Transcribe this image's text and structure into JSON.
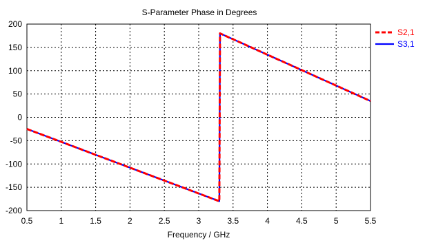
{
  "chart_data": {
    "type": "line",
    "title": "S-Parameter Phase in Degrees",
    "xlabel": "Frequency / GHz",
    "ylabel": "",
    "xlim": [
      0.5,
      5.5
    ],
    "ylim": [
      -200,
      200
    ],
    "xticks": [
      0.5,
      1,
      1.5,
      2,
      2.5,
      3,
      3.5,
      4,
      4.5,
      5,
      5.5
    ],
    "xtick_labels": [
      "0.5",
      "1",
      "1.5",
      "2",
      "2.5",
      "3",
      "3.5",
      "4",
      "4.5",
      "5",
      "5.5"
    ],
    "yticks": [
      200,
      150,
      100,
      50,
      0,
      -50,
      -100,
      -150,
      -200
    ],
    "ytick_labels": [
      "200",
      "150",
      "100",
      "50",
      "0",
      "-50",
      "-100",
      "-150",
      "-200"
    ],
    "grid": true,
    "legend_position": "right",
    "series": [
      {
        "name": "S2,1",
        "color": "#ff0000",
        "style": "dashed",
        "x": [
          0.5,
          3.3,
          3.31,
          5.5
        ],
        "y": [
          -25,
          -180,
          180,
          35
        ]
      },
      {
        "name": "S3,1",
        "color": "#0000ff",
        "style": "solid",
        "x": [
          0.5,
          3.3,
          3.31,
          5.5
        ],
        "y": [
          -25,
          -180,
          180,
          35
        ]
      }
    ]
  }
}
